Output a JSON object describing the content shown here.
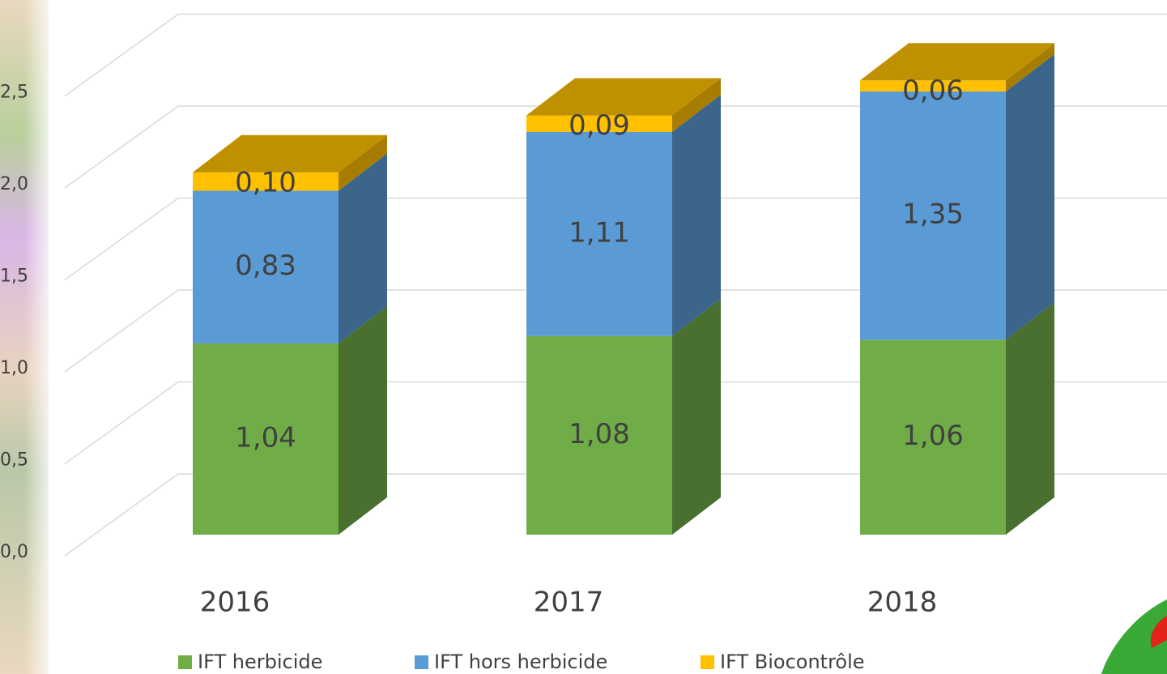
{
  "chart_data": {
    "type": "bar3d_stacked",
    "categories": [
      "2016",
      "2017",
      "2018"
    ],
    "series": [
      {
        "name": "IFT herbicide",
        "color": "#70ad47",
        "values": [
          1.04,
          1.08,
          1.06
        ],
        "value_labels": [
          "1,04",
          "1,08",
          "1,06"
        ]
      },
      {
        "name": "IFT hors herbicide",
        "color": "#5b9bd5",
        "values": [
          0.83,
          1.11,
          1.35
        ],
        "value_labels": [
          "0,83",
          "1,11",
          "1,35"
        ]
      },
      {
        "name": "IFT Biocontrôle",
        "color": "#ffc000",
        "values": [
          0.1,
          0.09,
          0.06
        ],
        "value_labels": [
          "0,10",
          "0,09",
          "0,06"
        ]
      }
    ],
    "ylim": [
      0,
      2.5
    ],
    "yticks": [
      {
        "value": 0,
        "label": "0,0"
      },
      {
        "value": 0.5,
        "label": "0,5"
      },
      {
        "value": 1,
        "label": "1,0"
      },
      {
        "value": 1.5,
        "label": "1,5"
      },
      {
        "value": 2,
        "label": "2,0"
      },
      {
        "value": 2.5,
        "label": "2,5"
      }
    ],
    "grid": true,
    "legend": "bottom"
  }
}
